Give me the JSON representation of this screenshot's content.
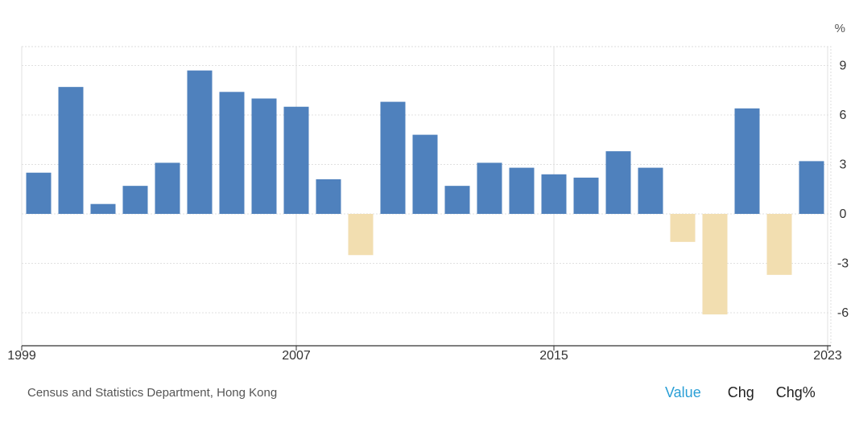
{
  "chart_data": {
    "type": "bar",
    "unit": "%",
    "x": [
      1999,
      2000,
      2001,
      2002,
      2003,
      2004,
      2005,
      2006,
      2007,
      2008,
      2009,
      2010,
      2011,
      2012,
      2013,
      2014,
      2015,
      2016,
      2017,
      2018,
      2019,
      2020,
      2021,
      2022,
      2023
    ],
    "values": [
      2.5,
      7.7,
      0.6,
      1.7,
      3.1,
      8.7,
      7.4,
      7.0,
      6.5,
      2.1,
      -2.5,
      6.8,
      4.8,
      1.7,
      3.1,
      2.8,
      2.4,
      2.2,
      3.8,
      2.8,
      -1.7,
      -6.1,
      6.4,
      -3.7,
      3.2
    ],
    "positive_color": "#4f81bd",
    "negative_color": "#f2deb0",
    "ylim": [
      -7.3,
      10
    ],
    "yticks": [
      9,
      6,
      3,
      0,
      -3,
      -6
    ],
    "ytick_labels": [
      "9",
      "6",
      "3",
      "0",
      "-3",
      "-6"
    ],
    "xtick_years": [
      1999,
      2007,
      2015,
      2023
    ],
    "xtick_labels": [
      "1999",
      "2007",
      "2015",
      "2023"
    ],
    "grid": true,
    "y_axis_side": "right"
  },
  "footer": {
    "source": "Census and Statistics Department, Hong Kong"
  },
  "toggles": {
    "value": "Value",
    "chg": "Chg",
    "chg_pct": "Chg%"
  }
}
